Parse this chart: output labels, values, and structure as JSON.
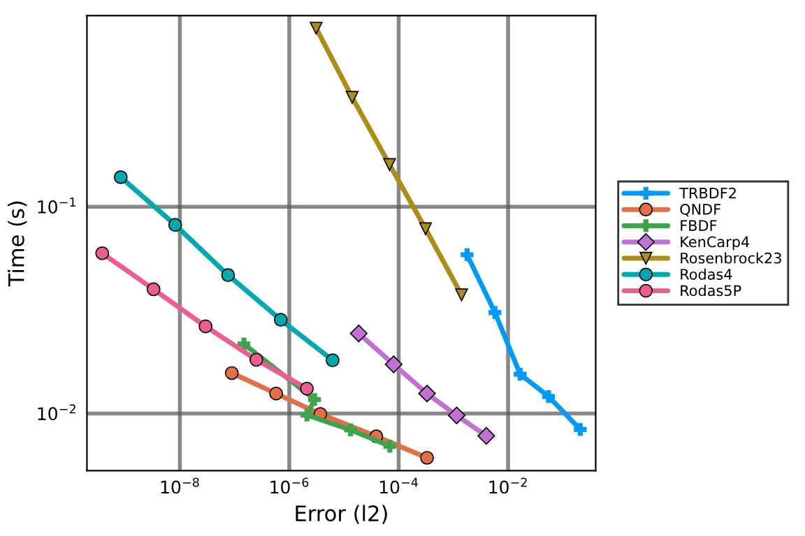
{
  "chart_data": {
    "type": "line",
    "xlabel": "Error (l2)",
    "ylabel": "Time (s)",
    "log": "xy",
    "grid": true,
    "legend": "right",
    "line_style": "solid",
    "xlim": [
      2e-10,
      0.4
    ],
    "ylim": [
      0.0053,
      0.84
    ],
    "xticks": [
      {
        "value": 1e-08,
        "label": "10$^{−8}$"
      },
      {
        "value": 1e-06,
        "label": "10$^{−6}$"
      },
      {
        "value": 0.0001,
        "label": "10$^{−4}$"
      },
      {
        "value": 0.01,
        "label": "10$^{−2}$"
      }
    ],
    "yticks": [
      {
        "value": 0.01,
        "label": "10$^{−2}$"
      },
      {
        "value": 0.1,
        "label": "10$^{−1}$"
      }
    ],
    "series": [
      {
        "name": "TRBDF2",
        "color": "#009af9",
        "marker": "cross",
        "x": [
          0.00178,
          0.00575,
          0.0166,
          0.055,
          0.209
        ],
        "values": [
          0.0586,
          0.0308,
          0.0155,
          0.0121,
          0.00838
        ]
      },
      {
        "name": "QNDF",
        "color": "#e26f46",
        "marker": "circle",
        "x": [
          8.9e-08,
          5.75e-07,
          3.7e-06,
          3.9e-05,
          0.00033
        ],
        "values": [
          0.0157,
          0.0125,
          0.00995,
          0.00776,
          0.00611
        ]
      },
      {
        "name": "FBDF",
        "color": "#3da44d",
        "marker": "cross",
        "x": [
          1.48e-07,
          2.9e-06,
          2.1e-06,
          1.32e-05,
          6.9e-05
        ],
        "values": [
          0.0217,
          0.0117,
          0.00984,
          0.00834,
          0.00695
        ]
      },
      {
        "name": "KenCarp4",
        "color": "#c271d2",
        "marker": "diamond",
        "x": [
          1.86e-05,
          8.1e-05,
          0.00033,
          0.00115,
          0.004
        ],
        "values": [
          0.0244,
          0.0173,
          0.0125,
          0.0098,
          0.0078
        ]
      },
      {
        "name": "Rosenbrock23",
        "color": "#ac8d18",
        "marker": "triangle",
        "x": [
          3.1e-06,
          1.41e-05,
          6.8e-05,
          0.00031,
          0.00141
        ],
        "values": [
          0.73,
          0.338,
          0.16,
          0.0783,
          0.0375
        ]
      },
      {
        "name": "Rodas4",
        "color": "#00a9ad",
        "marker": "circle",
        "x": [
          8.3e-10,
          8.2e-09,
          7.6e-08,
          7e-07,
          6.2e-06
        ],
        "values": [
          0.139,
          0.0817,
          0.0467,
          0.0284,
          0.0181
        ]
      },
      {
        "name": "Rodas5P",
        "color": "#ed5d92",
        "marker": "circle",
        "x": [
          3.8e-10,
          3.3e-09,
          2.95e-08,
          2.5e-07,
          2.1e-06
        ],
        "values": [
          0.0596,
          0.0399,
          0.0264,
          0.0182,
          0.0132
        ]
      }
    ]
  }
}
